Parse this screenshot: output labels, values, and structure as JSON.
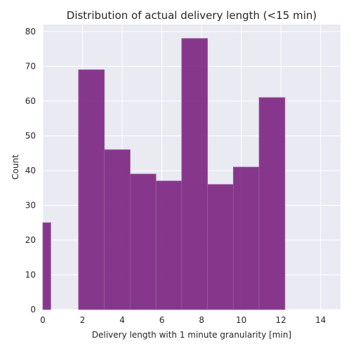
{
  "chart_data": {
    "type": "bar",
    "title": "Distribution of actual delivery length (<15 min)",
    "xlabel": "Delivery length with 1 minute granularity [min]",
    "ylabel": "Count",
    "xlim": [
      0,
      15
    ],
    "ylim": [
      0,
      82
    ],
    "x_ticks": [
      0,
      2,
      4,
      6,
      8,
      10,
      12,
      14
    ],
    "y_ticks": [
      0,
      10,
      20,
      30,
      40,
      50,
      60,
      70,
      80
    ],
    "grid": true,
    "bars": [
      {
        "x0": 0.0,
        "x1": 0.4,
        "value": 25
      },
      {
        "x0": 1.8,
        "x1": 3.1,
        "value": 69
      },
      {
        "x0": 3.1,
        "x1": 4.4,
        "value": 46
      },
      {
        "x0": 4.4,
        "x1": 5.7,
        "value": 39
      },
      {
        "x0": 5.7,
        "x1": 7.0,
        "value": 37
      },
      {
        "x0": 7.0,
        "x1": 8.3,
        "value": 78
      },
      {
        "x0": 8.3,
        "x1": 9.6,
        "value": 36
      },
      {
        "x0": 9.6,
        "x1": 10.9,
        "value": 41
      },
      {
        "x0": 10.9,
        "x1": 12.2,
        "value": 61
      }
    ],
    "colors": {
      "bar": "#7b2381",
      "bar_edge": "#9a5a9e",
      "background": "#eaeaf2",
      "grid": "#ffffff"
    }
  }
}
